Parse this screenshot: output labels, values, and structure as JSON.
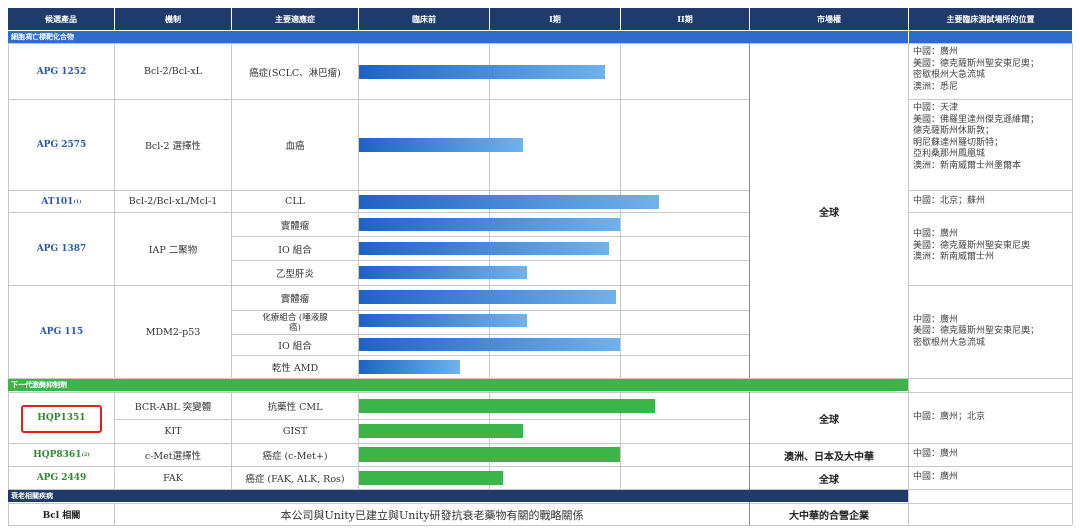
{
  "headers": [
    "候選產品",
    "機制",
    "主要適應症",
    "臨床前",
    "I期",
    "II期",
    "市場權",
    "主要臨床測試場所的位置"
  ],
  "sections": {
    "cell_death": "細胞凋亡標靶化合物",
    "kinase": "下一代激酶抑制劑",
    "aging": "衰老相關疾病"
  },
  "products": {
    "apg1252": "APG 1252",
    "apg2575": "APG 2575",
    "at101": "AT101",
    "at101_note": "(1)",
    "apg1387": "APG 1387",
    "apg115": "APG 115",
    "hqp1351": "HQP1351",
    "hqp8361": "HQP8361",
    "hqp8361_note": "(2)",
    "apg2449": "APG 2449",
    "bcl2_related": "Bcl 相關"
  },
  "mechanisms": {
    "apg1252": "Bcl-2/Bcl-xL",
    "apg2575": "Bcl-2 選擇性",
    "at101": "Bcl-2/Bcl-xL/Mcl-1",
    "apg1387": "IAP 二聚物",
    "apg115": "MDM2-p53",
    "bcr_abl": "BCR-ABL 突變體",
    "kit": "KIT",
    "cmet": "c-Met選擇性",
    "fak": "FAK"
  },
  "indications": {
    "apg1252": "癌症(SCLC、淋巴瘤)",
    "apg2575": "血癌",
    "at101": "CLL",
    "apg1387_1": "實體瘤",
    "apg1387_2": "IO 組合",
    "apg1387_3": "乙型肝炎",
    "apg115_1": "實體瘤",
    "apg115_2": "化療組合 (唾液腺癌)",
    "apg115_3": "IO 組合",
    "apg115_4": "乾性 AMD",
    "cml": "抗藥性 CML",
    "gist": "GIST",
    "cmet": "癌症 (c-Met+)",
    "fak": "癌症 (FAK, ALK, Ros)"
  },
  "markets": {
    "global": "全球",
    "global_kinase": "全球",
    "hqp8361": "澳洲、日本及大中華",
    "apg2449": "全球",
    "bcl2_related": "大中華的合營企業"
  },
  "locations": {
    "apg1252": "中國：廣州\n美國：德克薩斯州聖安東尼奧；\n密歇根州大急流城\n澳洲：悉尼",
    "apg2575": "中國：天津\n美國：佛羅里達州傑克遜維爾；\n德克薩斯州休斯敦；\n明尼蘇達州羅切斯特；\n亞利桑那州鳳凰城\n澳洲：新南威爾士州墨爾本",
    "at101": "中國：北京；蘇州",
    "apg1387": "中國：廣州\n美國：德克薩斯州聖安東尼奧\n澳洲：新南威爾士州",
    "apg115": "中國：廣州\n美國：德克薩斯州聖安東尼奧；\n密歇根州大急流城",
    "hqp1351": "中國：廣州；北京",
    "hqp8361": "中國：廣州",
    "apg2449": "中國：廣州"
  },
  "footer_text": "本公司與Unity已建立與Unity研發抗衰老藥物有關的戰略關係",
  "progress": {
    "note": "bar end as fraction across preclinical–II columns (0 = start of 臨床前, 1 = end of II期)",
    "apg1252": 0.63,
    "apg2575": 0.42,
    "at101": 0.77,
    "apg1387_1": 0.67,
    "apg1387_2": 0.64,
    "apg1387_3": 0.43,
    "apg115_1": 0.66,
    "apg115_2": 0.43,
    "apg115_3": 0.67,
    "apg115_4": 0.26,
    "cml": 0.76,
    "gist": 0.42,
    "cmet": 0.67,
    "fak": 0.37
  },
  "colors": {
    "header": "#1f3a6b",
    "section_cell_death": "#2a6ec9",
    "section_kinase": "#3bb54a",
    "section_aging": "#1f3a6b",
    "bar_blue": "#1e63c4",
    "bar_green": "#3bb54a",
    "highlight": "#e02020"
  }
}
